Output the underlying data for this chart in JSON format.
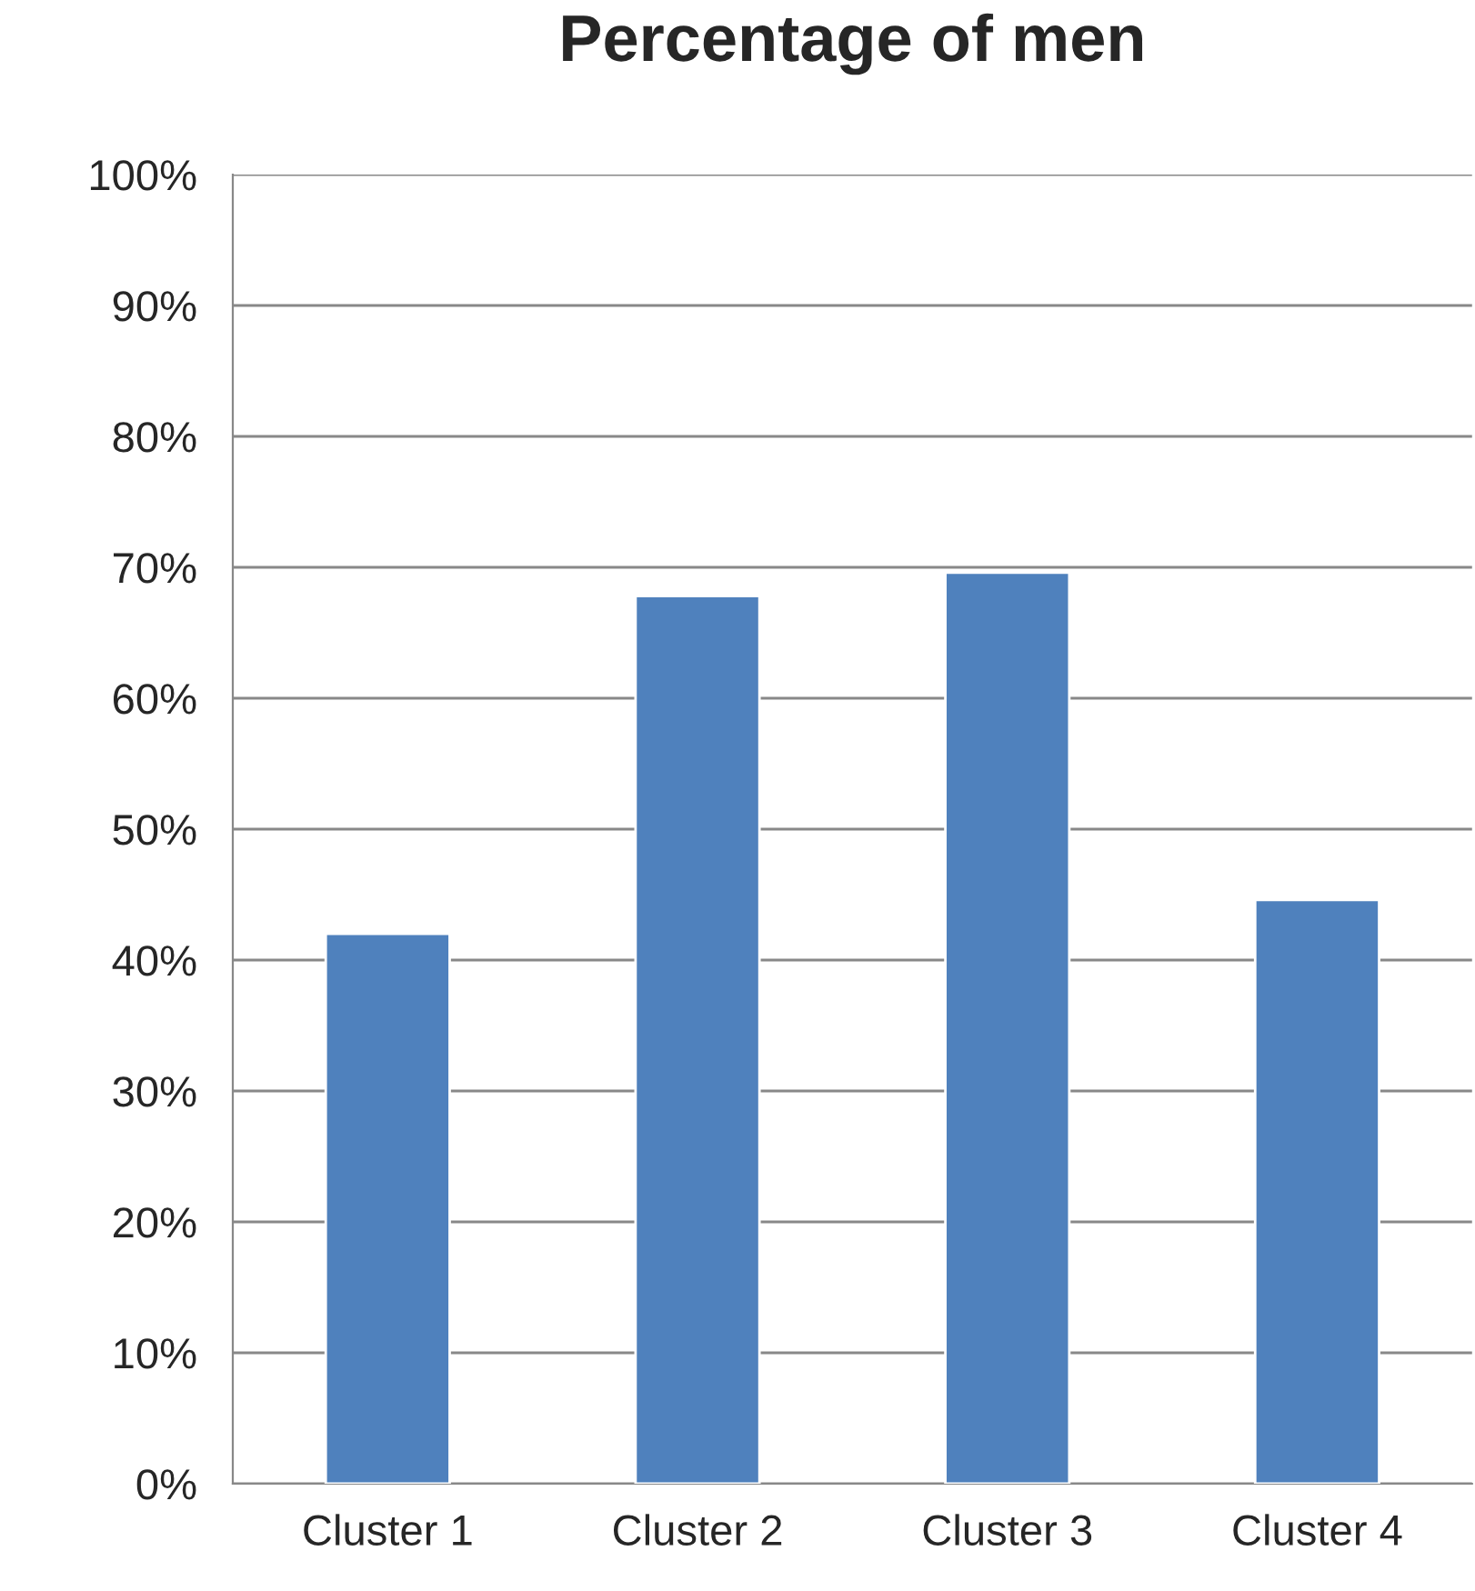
{
  "chart_data": {
    "type": "bar",
    "title": "Percentage of men",
    "categories": [
      "Cluster 1",
      "Cluster 2",
      "Cluster 3",
      "Cluster 4"
    ],
    "values": [
      42,
      67.8,
      69.6,
      44.6
    ],
    "color": "#4f81bd",
    "ylim": [
      0,
      100
    ],
    "yticks": [
      {
        "value": 0,
        "label": "0%"
      },
      {
        "value": 10,
        "label": "10%"
      },
      {
        "value": 20,
        "label": "20%"
      },
      {
        "value": 30,
        "label": "30%"
      },
      {
        "value": 40,
        "label": "40%"
      },
      {
        "value": 50,
        "label": "50%"
      },
      {
        "value": 60,
        "label": "60%"
      },
      {
        "value": 70,
        "label": "70%"
      },
      {
        "value": 80,
        "label": "80%"
      },
      {
        "value": 90,
        "label": "90%"
      },
      {
        "value": 100,
        "label": "100%"
      }
    ],
    "grid": "y"
  }
}
